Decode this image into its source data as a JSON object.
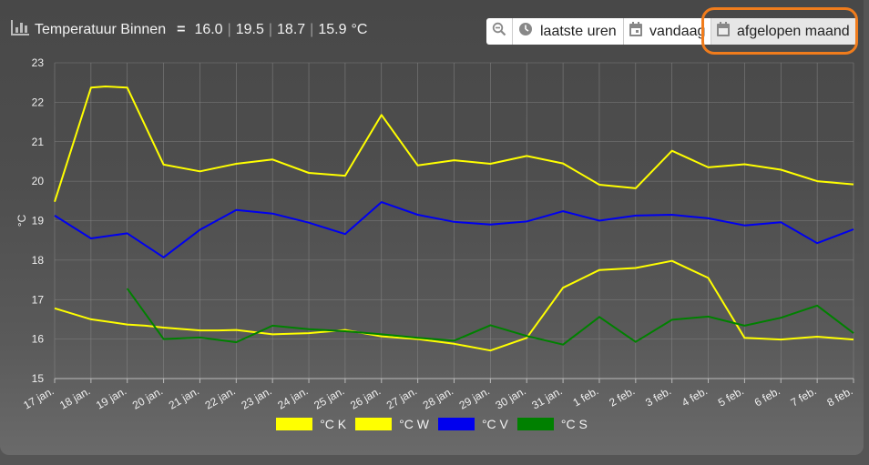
{
  "header": {
    "title": "Temperatuur Binnen",
    "eq": "=",
    "values": [
      "16.0",
      "19.5",
      "18.7",
      "15.9"
    ],
    "unit": "°C"
  },
  "toolbar": {
    "zoom_icon": "zoom-out-icon",
    "recent_label": "laatste uren",
    "today_label": "vandaag",
    "month_label": "afgelopen maand",
    "active": "afgelopen maand"
  },
  "highlight_color": "#f07c1c",
  "chart_data": {
    "type": "line",
    "ylabel": "°C",
    "ylim": [
      15,
      23
    ],
    "yticks": [
      15,
      16,
      17,
      18,
      19,
      20,
      21,
      22,
      23
    ],
    "grid": true,
    "legend": "bottom",
    "categories": [
      "17 jan.",
      "18 jan.",
      "19 jan.",
      "20 jan.",
      "21 jan.",
      "22 jan.",
      "23 jan.",
      "24 jan.",
      "25 jan.",
      "26 jan.",
      "27 jan.",
      "28 jan.",
      "29 jan.",
      "30 jan.",
      "31 jan.",
      "1 feb.",
      "2 feb.",
      "3 feb.",
      "4 feb.",
      "5 feb.",
      "6 feb.",
      "7 feb.",
      "8 feb."
    ],
    "series": [
      {
        "name": "°C K",
        "color": "#ffff00",
        "points": [
          [
            0,
            16.78
          ],
          [
            1,
            16.5
          ],
          [
            2,
            16.37
          ],
          [
            2.5,
            16.34
          ],
          [
            3,
            16.29
          ],
          [
            4,
            16.22
          ],
          [
            4.5,
            16.22
          ],
          [
            5,
            16.23
          ],
          [
            6,
            16.12
          ],
          [
            7,
            16.15
          ],
          [
            8,
            16.23
          ],
          [
            9,
            16.07
          ],
          [
            10,
            16.0
          ],
          [
            11,
            15.88
          ],
          [
            12,
            15.71
          ],
          [
            13,
            16.03
          ],
          [
            14,
            17.3
          ],
          [
            15,
            17.75
          ],
          [
            16,
            17.8
          ],
          [
            17,
            17.98
          ],
          [
            18,
            17.55
          ],
          [
            19,
            16.03
          ],
          [
            20,
            15.99
          ],
          [
            21,
            16.06
          ],
          [
            22,
            15.99
          ]
        ]
      },
      {
        "name": "°C W",
        "color": "#ffff00",
        "points": [
          [
            0,
            19.48
          ],
          [
            1,
            22.37
          ],
          [
            1.4,
            22.4
          ],
          [
            2,
            22.37
          ],
          [
            3,
            20.42
          ],
          [
            4,
            20.25
          ],
          [
            5,
            20.44
          ],
          [
            6,
            20.55
          ],
          [
            7,
            20.21
          ],
          [
            8,
            20.14
          ],
          [
            9,
            21.68
          ],
          [
            10,
            20.4
          ],
          [
            11,
            20.53
          ],
          [
            12,
            20.44
          ],
          [
            13,
            20.64
          ],
          [
            14,
            20.45
          ],
          [
            15,
            19.91
          ],
          [
            16,
            19.82
          ],
          [
            17,
            20.77
          ],
          [
            18,
            20.35
          ],
          [
            19,
            20.43
          ],
          [
            20,
            20.29
          ],
          [
            21,
            20.0
          ],
          [
            22,
            19.92
          ]
        ]
      },
      {
        "name": "°C V",
        "color": "#0000ee",
        "points": [
          [
            0,
            19.13
          ],
          [
            1,
            18.55
          ],
          [
            2,
            18.68
          ],
          [
            3,
            18.07
          ],
          [
            4,
            18.77
          ],
          [
            5,
            19.27
          ],
          [
            6,
            19.18
          ],
          [
            7,
            18.95
          ],
          [
            8,
            18.66
          ],
          [
            9,
            19.47
          ],
          [
            10,
            19.15
          ],
          [
            11,
            18.97
          ],
          [
            12,
            18.9
          ],
          [
            13,
            18.98
          ],
          [
            14,
            19.24
          ],
          [
            15,
            19.0
          ],
          [
            16,
            19.13
          ],
          [
            17,
            19.15
          ],
          [
            18,
            19.06
          ],
          [
            19,
            18.88
          ],
          [
            20,
            18.96
          ],
          [
            21,
            18.43
          ],
          [
            22,
            18.78
          ]
        ]
      },
      {
        "name": "°C S",
        "color": "#008000",
        "points": [
          [
            2,
            17.28
          ],
          [
            3,
            16.0
          ],
          [
            4,
            16.04
          ],
          [
            5,
            15.92
          ],
          [
            6,
            16.34
          ],
          [
            7,
            16.25
          ],
          [
            8,
            16.2
          ],
          [
            9,
            16.12
          ],
          [
            10,
            16.03
          ],
          [
            11,
            15.96
          ],
          [
            12,
            16.35
          ],
          [
            13,
            16.08
          ],
          [
            14,
            15.86
          ],
          [
            15,
            16.56
          ],
          [
            16,
            15.93
          ],
          [
            17,
            16.49
          ],
          [
            18,
            16.57
          ],
          [
            19,
            16.34
          ],
          [
            20,
            16.54
          ],
          [
            21,
            16.85
          ],
          [
            22,
            16.15
          ]
        ]
      }
    ]
  }
}
